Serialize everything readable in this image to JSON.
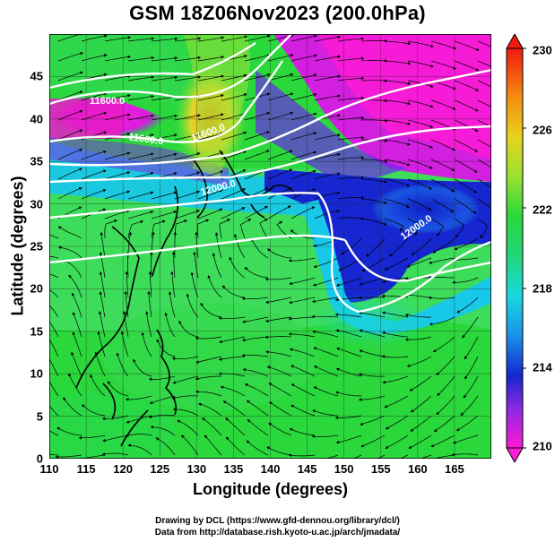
{
  "title": "GSM 18Z06Nov2023 (200.0hPa)",
  "xlabel": "Longitude (degrees)",
  "ylabel": "Latitude  (degrees)",
  "x_ticks": [
    "110",
    "115",
    "120",
    "125",
    "130",
    "135",
    "140",
    "145",
    "150",
    "155",
    "160",
    "165"
  ],
  "y_ticks": [
    "0",
    "5",
    "10",
    "15",
    "20",
    "25",
    "30",
    "35",
    "40",
    "45"
  ],
  "colorbar": {
    "labels": [
      "230",
      "226",
      "222",
      "218",
      "214",
      "210"
    ],
    "min": 210,
    "max": 230
  },
  "contour_labels": [
    "11600.0",
    "11600.0",
    "11600.0",
    "12000.0",
    "12000.0"
  ],
  "credits": {
    "line1": "Drawing by DCL (https://www.gfd-dennou.org/library/dcl/)",
    "line2": "Data from http://database.rish.kyoto-u.ac.jp/arch/jmadata/"
  },
  "chart_data": {
    "type": "heatmap",
    "title": "GSM 18Z06Nov2023 (200.0hPa)",
    "xlabel": "Longitude (degrees)",
    "ylabel": "Latitude  (degrees)",
    "xlim": [
      110,
      170
    ],
    "ylim": [
      0,
      50
    ],
    "colorbar_range": [
      210,
      230
    ],
    "colorbar_ticks": [
      210,
      214,
      218,
      222,
      226,
      230
    ],
    "overlays": [
      "streamlines",
      "geopotential height contours",
      "coastlines",
      "grid"
    ],
    "contour_labels": [
      "11600.0",
      "11600.0",
      "11600.0",
      "12000.0",
      "12000.0"
    ],
    "colors": {
      "low": "#ff1ad1",
      "mid_low": "#1a2bd8",
      "mid": "#19e0d8",
      "mid_high": "#22e040",
      "high": "#f5a20a",
      "max": "#f01212"
    }
  }
}
